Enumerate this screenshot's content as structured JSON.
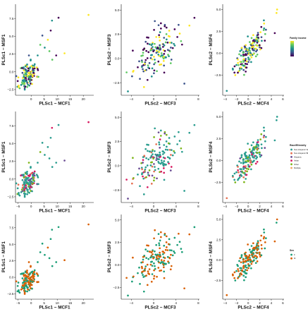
{
  "chart_data": [
    {
      "id": "r1c1",
      "type": "scatter",
      "xlabel": "PLSc1 − MCF1",
      "ylabel": "PLSc1 − MSF1",
      "xlim": [
        -6,
        24
      ],
      "ylim": [
        -3.3,
        9.5
      ],
      "xticks": [
        {
          "v": 0,
          "label": "0"
        },
        {
          "v": 5,
          "label": "5"
        },
        {
          "v": 10,
          "label": "10"
        },
        {
          "v": 15,
          "label": "15"
        },
        {
          "v": 20,
          "label": "20"
        }
      ],
      "yticks": [
        {
          "v": -2.5,
          "label": "−2.5"
        },
        {
          "v": 0,
          "label": "0.0"
        },
        {
          "v": 2.5,
          "label": "2.5"
        },
        {
          "v": 5,
          "label": "5.0"
        },
        {
          "v": 7.5,
          "label": "7.5"
        }
      ],
      "color_scheme": "viridis",
      "cloud": {
        "cx": -1.2,
        "cy": -0.5,
        "sx": 1.6,
        "sy": 1.0,
        "slope": 0.22,
        "n": 140,
        "seed": 11
      },
      "outliers": [
        [
          22,
          8.0
        ],
        [
          10.5,
          7.6
        ],
        [
          8.0,
          7.2
        ],
        [
          7.5,
          5.8
        ],
        [
          12.8,
          2.6
        ],
        [
          9.6,
          2.3
        ],
        [
          8.1,
          1.7
        ],
        [
          6.4,
          4.5
        ],
        [
          4.3,
          5.1
        ],
        [
          5.2,
          3.4
        ],
        [
          7.0,
          2.9
        ],
        [
          3.5,
          3.8
        ]
      ]
    },
    {
      "id": "r1c2",
      "type": "scatter",
      "xlabel": "PLSc2 − MCF3",
      "ylabel": "PLSc2 − MSF3",
      "xlim": [
        -5.8,
        8.2
      ],
      "ylim": [
        -3.8,
        5.6
      ],
      "xticks": [
        {
          "v": -4,
          "label": "−4"
        },
        {
          "v": 0,
          "label": "0"
        },
        {
          "v": 4,
          "label": "4"
        },
        {
          "v": 8,
          "label": "8"
        }
      ],
      "yticks": [
        {
          "v": -2.5,
          "label": "−2.5"
        },
        {
          "v": 0,
          "label": "0.0"
        },
        {
          "v": 2.5,
          "label": "2.5"
        },
        {
          "v": 5,
          "label": "5.0"
        }
      ],
      "color_scheme": "viridis",
      "cloud": {
        "cx": 0.3,
        "cy": 0.5,
        "sx": 1.9,
        "sy": 1.1,
        "slope": 0.32,
        "n": 150,
        "seed": 23
      },
      "outliers": [
        [
          -4.6,
          -3.4
        ],
        [
          7.3,
          4.2
        ],
        [
          5.5,
          -2.6
        ],
        [
          6.4,
          3.4
        ]
      ]
    },
    {
      "id": "r1c3",
      "type": "scatter",
      "xlabel": "PLSc2 − MCF4",
      "ylabel": "PLSc2 − MSF4",
      "xlim": [
        -4.4,
        6.2
      ],
      "ylim": [
        -4.8,
        5.6
      ],
      "xticks": [
        {
          "v": -4,
          "label": "−4"
        },
        {
          "v": -2,
          "label": "−2"
        },
        {
          "v": 0,
          "label": "0"
        },
        {
          "v": 2,
          "label": "2"
        },
        {
          "v": 4,
          "label": "4"
        },
        {
          "v": 6,
          "label": "6"
        }
      ],
      "yticks": [
        {
          "v": -2.5,
          "label": "−2.5"
        },
        {
          "v": 0,
          "label": "0.0"
        },
        {
          "v": 2.5,
          "label": "2.5"
        },
        {
          "v": 5,
          "label": "5.0"
        }
      ],
      "color_scheme": "viridis",
      "cloud": {
        "cx": 0.2,
        "cy": 0.2,
        "sx": 1.2,
        "sy": 0.8,
        "slope": 0.85,
        "n": 150,
        "seed": 37
      },
      "outliers": [
        [
          5.0,
          5.0
        ],
        [
          -3.7,
          -4.3
        ],
        [
          4.9,
          4.6
        ],
        [
          4.6,
          2.3
        ]
      ]
    },
    {
      "id": "r2c1",
      "type": "scatter",
      "xlabel": "PLSc1 − MCF1",
      "ylabel": "PLSc1 − MSF1",
      "xlim": [
        -6,
        24
      ],
      "ylim": [
        -3.3,
        9.5
      ],
      "xticks": [
        {
          "v": -5,
          "label": "−5"
        },
        {
          "v": 0,
          "label": "0"
        },
        {
          "v": 5,
          "label": "5"
        },
        {
          "v": 10,
          "label": "10"
        },
        {
          "v": 15,
          "label": "15"
        },
        {
          "v": 20,
          "label": "20"
        }
      ],
      "yticks": [
        {
          "v": -2.5,
          "label": "−2.5"
        },
        {
          "v": 0,
          "label": "0.0"
        },
        {
          "v": 2.5,
          "label": "2.5"
        },
        {
          "v": 5,
          "label": "5.0"
        },
        {
          "v": 7.5,
          "label": "7.5"
        }
      ],
      "color_scheme": "ethnicity",
      "cloud": {
        "cx": -1.2,
        "cy": -0.5,
        "sx": 1.6,
        "sy": 1.0,
        "slope": 0.22,
        "n": 140,
        "seed": 11
      },
      "outliers": [
        [
          22,
          8.0
        ],
        [
          10.5,
          7.6
        ],
        [
          8.0,
          7.2
        ],
        [
          7.5,
          5.8
        ],
        [
          12.8,
          2.6
        ],
        [
          9.6,
          2.3
        ],
        [
          8.1,
          1.7
        ],
        [
          6.4,
          4.5
        ],
        [
          4.3,
          5.1
        ],
        [
          5.2,
          3.4
        ],
        [
          7.0,
          2.9
        ],
        [
          3.5,
          3.8
        ]
      ]
    },
    {
      "id": "r2c2",
      "type": "scatter",
      "xlabel": "PLSc2 − MCF3",
      "ylabel": "PLSc2 − MSF3",
      "xlim": [
        -5.8,
        8.2
      ],
      "ylim": [
        -3.8,
        5.6
      ],
      "xticks": [
        {
          "v": -4,
          "label": "−4"
        },
        {
          "v": 0,
          "label": "0"
        },
        {
          "v": 4,
          "label": "4"
        },
        {
          "v": 8,
          "label": "8"
        }
      ],
      "yticks": [
        {
          "v": -2.5,
          "label": "−2.5"
        },
        {
          "v": 0,
          "label": "0.0"
        },
        {
          "v": 2.5,
          "label": "2.5"
        },
        {
          "v": 5,
          "label": "5.0"
        }
      ],
      "color_scheme": "ethnicity",
      "cloud": {
        "cx": 0.3,
        "cy": 0.5,
        "sx": 1.9,
        "sy": 1.1,
        "slope": 0.32,
        "n": 150,
        "seed": 23
      },
      "outliers": [
        [
          -4.6,
          -3.4
        ],
        [
          7.3,
          4.2
        ],
        [
          5.5,
          -2.6
        ],
        [
          6.4,
          3.4
        ]
      ]
    },
    {
      "id": "r2c3",
      "type": "scatter",
      "xlabel": "PLSc2 − MCF4",
      "ylabel": "PLSc2 − MSF4",
      "xlim": [
        -4.4,
        6.2
      ],
      "ylim": [
        -4.8,
        5.6
      ],
      "xticks": [
        {
          "v": -4,
          "label": "−4"
        },
        {
          "v": -2,
          "label": "−2"
        },
        {
          "v": 0,
          "label": "0"
        },
        {
          "v": 2,
          "label": "2"
        },
        {
          "v": 4,
          "label": "4"
        },
        {
          "v": 6,
          "label": "6"
        }
      ],
      "yticks": [
        {
          "v": -2.5,
          "label": "−2.5"
        },
        {
          "v": 0,
          "label": "0.0"
        },
        {
          "v": 2.5,
          "label": "2.5"
        },
        {
          "v": 5,
          "label": "5.0"
        }
      ],
      "color_scheme": "ethnicity",
      "cloud": {
        "cx": 0.2,
        "cy": 0.2,
        "sx": 1.2,
        "sy": 0.8,
        "slope": 0.85,
        "n": 150,
        "seed": 37
      },
      "outliers": [
        [
          5.0,
          5.0
        ],
        [
          -3.7,
          -4.3
        ],
        [
          4.9,
          4.6
        ],
        [
          4.6,
          2.3
        ]
      ]
    },
    {
      "id": "r3c1",
      "type": "scatter",
      "xlabel": "PLSc1 − MCF1",
      "ylabel": "PLSc1 − MSF1",
      "xlim": [
        -6,
        24
      ],
      "ylim": [
        -3.3,
        9.5
      ],
      "xticks": [
        {
          "v": -5,
          "label": "−5"
        },
        {
          "v": 0,
          "label": "0"
        },
        {
          "v": 5,
          "label": "5"
        },
        {
          "v": 10,
          "label": "10"
        },
        {
          "v": 15,
          "label": "15"
        },
        {
          "v": 20,
          "label": "20"
        }
      ],
      "yticks": [
        {
          "v": -2.5,
          "label": "−2.5"
        },
        {
          "v": 0,
          "label": "0.0"
        },
        {
          "v": 2.5,
          "label": "2.5"
        },
        {
          "v": 5,
          "label": "5.0"
        },
        {
          "v": 7.5,
          "label": "7.5"
        }
      ],
      "color_scheme": "sex",
      "cloud": {
        "cx": -1.2,
        "cy": -0.5,
        "sx": 1.6,
        "sy": 1.0,
        "slope": 0.22,
        "n": 140,
        "seed": 11
      },
      "outliers": [
        [
          22,
          8.0
        ],
        [
          10.5,
          7.6
        ],
        [
          8.0,
          7.2
        ],
        [
          7.5,
          5.8
        ],
        [
          12.8,
          2.6
        ],
        [
          9.6,
          2.3
        ],
        [
          8.1,
          1.7
        ],
        [
          6.4,
          4.5
        ],
        [
          4.3,
          5.1
        ],
        [
          5.2,
          3.4
        ],
        [
          7.0,
          2.9
        ],
        [
          3.5,
          3.8
        ]
      ]
    },
    {
      "id": "r3c2",
      "type": "scatter",
      "xlabel": "PLSc2 − MCF3",
      "ylabel": "PLSc2 − MSF3",
      "xlim": [
        -5.8,
        8.2
      ],
      "ylim": [
        -3.8,
        5.6
      ],
      "xticks": [
        {
          "v": -4,
          "label": "−4"
        },
        {
          "v": 0,
          "label": "0"
        },
        {
          "v": 4,
          "label": "4"
        },
        {
          "v": 8,
          "label": "8"
        }
      ],
      "yticks": [
        {
          "v": -2.5,
          "label": "−2.5"
        },
        {
          "v": 0,
          "label": "0.0"
        },
        {
          "v": 2.5,
          "label": "2.5"
        },
        {
          "v": 5,
          "label": "5.0"
        }
      ],
      "color_scheme": "sex",
      "cloud": {
        "cx": 0.3,
        "cy": 0.5,
        "sx": 1.9,
        "sy": 1.1,
        "slope": 0.32,
        "n": 150,
        "seed": 23
      },
      "outliers": [
        [
          -4.6,
          -3.4
        ],
        [
          7.3,
          4.2
        ],
        [
          5.5,
          -2.6
        ],
        [
          6.4,
          3.4
        ]
      ]
    },
    {
      "id": "r3c3",
      "type": "scatter",
      "xlabel": "PLSc2 − MCF4",
      "ylabel": "PLSc2 − MSF4",
      "xlim": [
        -4.4,
        6.2
      ],
      "ylim": [
        -4.8,
        5.6
      ],
      "xticks": [
        {
          "v": -4,
          "label": "−4"
        },
        {
          "v": -2,
          "label": "−2"
        },
        {
          "v": 0,
          "label": "0"
        },
        {
          "v": 2,
          "label": "2"
        },
        {
          "v": 4,
          "label": "4"
        },
        {
          "v": 6,
          "label": "6"
        }
      ],
      "yticks": [
        {
          "v": -2.5,
          "label": "−2.5"
        },
        {
          "v": 0,
          "label": "0.0"
        },
        {
          "v": 2.5,
          "label": "2.5"
        },
        {
          "v": 5,
          "label": "5.0"
        }
      ],
      "color_scheme": "sex",
      "cloud": {
        "cx": 0.2,
        "cy": 0.2,
        "sx": 1.2,
        "sy": 0.8,
        "slope": 0.85,
        "n": 150,
        "seed": 37
      },
      "outliers": [
        [
          5.0,
          5.0
        ],
        [
          -3.7,
          -4.3
        ],
        [
          4.9,
          4.6
        ],
        [
          4.6,
          2.3
        ]
      ]
    }
  ],
  "legends": {
    "viridis": {
      "title": "Family income",
      "type": "colorbar",
      "colors": [
        "#440154",
        "#3b528b",
        "#21918c",
        "#5ec962",
        "#fde725"
      ],
      "labels": [
        "",
        "",
        "",
        "",
        ""
      ]
    },
    "ethnicity": {
      "title": "Race/Ethnicity",
      "type": "categorical",
      "entries": [
        {
          "label": "Non-Hispanic White",
          "color": "#2a9d8f"
        },
        {
          "label": "Non-Hispanic Black",
          "color": "#e76f51"
        },
        {
          "label": "Hispanic",
          "color": "#6a4c93"
        },
        {
          "label": "Asian",
          "color": "#d81b60"
        },
        {
          "label": "Other",
          "color": "#7cb518"
        },
        {
          "label": "Multiple",
          "color": "#f4a261"
        }
      ]
    },
    "sex": {
      "title": "Sex",
      "type": "categorical",
      "entries": [
        {
          "label": "F",
          "color": "#1b9e77"
        },
        {
          "label": "M",
          "color": "#d95f02"
        }
      ]
    }
  },
  "palettes": {
    "viridis": [
      "#440154",
      "#3b528b",
      "#21918c",
      "#5ec962",
      "#fde725"
    ],
    "ethnicity": [
      "#2a9d8f",
      "#2a9d8f",
      "#2a9d8f",
      "#2a9d8f",
      "#2a9d8f",
      "#2a9d8f",
      "#e76f51",
      "#6a4c93",
      "#d81b60",
      "#7cb518"
    ],
    "sex": [
      "#1b9e77",
      "#d95f02"
    ]
  }
}
